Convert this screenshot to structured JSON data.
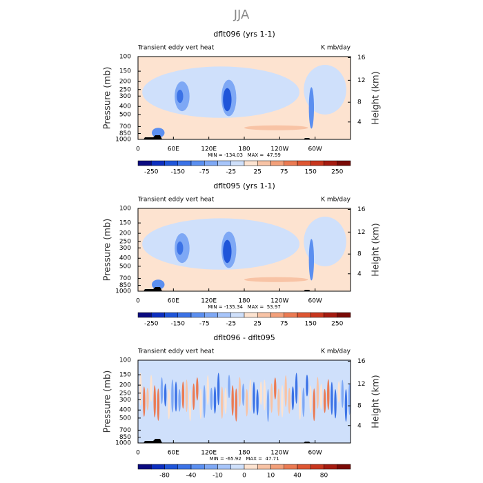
{
  "title": "JJA",
  "chart_data": [
    {
      "type": "contour",
      "title": "dflt096 (yrs 1-1)",
      "left_label": "Transient eddy vert heat",
      "right_label": "K mb/day",
      "ylabel": "Pressure (mb)",
      "y2label": "Height (km)",
      "xlim": [
        0,
        360
      ],
      "xticks": [
        0,
        {
          "value": 60,
          "label": "60E"
        },
        {
          "value": 120,
          "label": "120E"
        },
        180,
        {
          "value": 240,
          "label": "120W"
        },
        {
          "value": 300,
          "label": "60W"
        }
      ],
      "ylim": [
        1000,
        100
      ],
      "log_y": true,
      "yticks": [
        100,
        150,
        200,
        250,
        300,
        400,
        500,
        700,
        850,
        1000
      ],
      "y2ticks": [
        4,
        8,
        12,
        16
      ],
      "stats": "MIN = -134.03   MAX =  47.59",
      "colorbar": {
        "labels": [
          -250,
          -150,
          -75,
          -25,
          25,
          75,
          150,
          250
        ],
        "colors": [
          "#0a0a80",
          "#0d2fbf",
          "#1f55d9",
          "#3b72e6",
          "#5b8ff0",
          "#7ea8f5",
          "#a7c5fa",
          "#cfe0fb",
          "#fde3d0",
          "#f8c3a5",
          "#f3a07a",
          "#eb7a52",
          "#de5632",
          "#c8361e",
          "#a51b10",
          "#7a0a06"
        ]
      }
    },
    {
      "type": "contour",
      "title": "dflt095 (yrs 1-1)",
      "left_label": "Transient eddy vert heat",
      "right_label": "K mb/day",
      "ylabel": "Pressure (mb)",
      "y2label": "Height (km)",
      "xlim": [
        0,
        360
      ],
      "xticks": [
        0,
        {
          "value": 60,
          "label": "60E"
        },
        {
          "value": 120,
          "label": "120E"
        },
        180,
        {
          "value": 240,
          "label": "120W"
        },
        {
          "value": 300,
          "label": "60W"
        }
      ],
      "ylim": [
        1000,
        100
      ],
      "log_y": true,
      "yticks": [
        100,
        150,
        200,
        250,
        300,
        400,
        500,
        700,
        850,
        1000
      ],
      "y2ticks": [
        4,
        8,
        12,
        16
      ],
      "stats": "MIN = -135.34   MAX =  53.97",
      "colorbar": {
        "labels": [
          -250,
          -150,
          -75,
          -25,
          25,
          75,
          150,
          250
        ],
        "colors": [
          "#0a0a80",
          "#0d2fbf",
          "#1f55d9",
          "#3b72e6",
          "#5b8ff0",
          "#7ea8f5",
          "#a7c5fa",
          "#cfe0fb",
          "#fde3d0",
          "#f8c3a5",
          "#f3a07a",
          "#eb7a52",
          "#de5632",
          "#c8361e",
          "#a51b10",
          "#7a0a06"
        ]
      }
    },
    {
      "type": "contour",
      "title": "dflt096 - dflt095",
      "left_label": "Transient eddy vert heat",
      "right_label": "K mb/day",
      "ylabel": "Pressure (mb)",
      "y2label": "Height (km)",
      "xlim": [
        0,
        360
      ],
      "xticks": [
        0,
        {
          "value": 60,
          "label": "60E"
        },
        {
          "value": 120,
          "label": "120E"
        },
        180,
        {
          "value": 240,
          "label": "120W"
        },
        {
          "value": 300,
          "label": "60W"
        }
      ],
      "ylim": [
        1000,
        100
      ],
      "log_y": true,
      "yticks": [
        100,
        150,
        200,
        250,
        300,
        400,
        500,
        700,
        850,
        1000
      ],
      "y2ticks": [
        4,
        8,
        12,
        16
      ],
      "stats": "MIN = -65.92   MAX =  47.71",
      "colorbar": {
        "labels": [
          -80,
          -40,
          -10,
          0,
          10,
          40,
          80
        ],
        "colors": [
          "#0a0a80",
          "#0d2fbf",
          "#1f55d9",
          "#3b72e6",
          "#5b8ff0",
          "#7ea8f5",
          "#a7c5fa",
          "#cfe0fb",
          "#fde3d0",
          "#f8c3a5",
          "#f3a07a",
          "#eb7a52",
          "#de5632",
          "#c8361e",
          "#a51b10",
          "#7a0a06"
        ]
      }
    }
  ]
}
